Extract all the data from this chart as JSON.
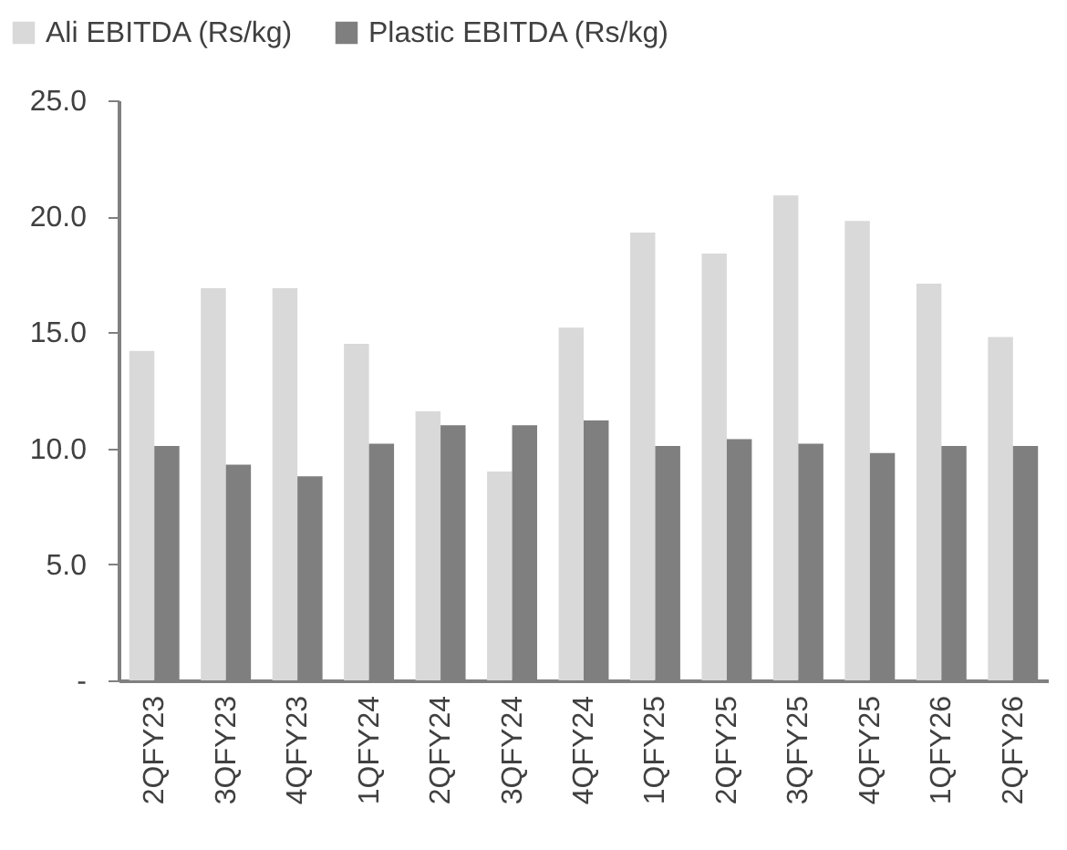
{
  "chart_data": {
    "type": "bar",
    "categories": [
      "2QFY23",
      "3QFY23",
      "4QFY23",
      "1QFY24",
      "2QFY24",
      "3QFY24",
      "4QFY24",
      "1QFY25",
      "2QFY25",
      "3QFY25",
      "4QFY25",
      "1QFY26",
      "2QFY26"
    ],
    "series": [
      {
        "name": "Ali EBITDA (Rs/kg)",
        "color": "#d9d9d9",
        "values": [
          14.2,
          16.9,
          16.9,
          14.5,
          11.6,
          9.0,
          15.2,
          19.3,
          18.4,
          20.9,
          19.8,
          17.1,
          14.8
        ]
      },
      {
        "name": "Plastic EBITDA (Rs/kg)",
        "color": "#7f7f7f",
        "values": [
          10.1,
          9.3,
          8.8,
          10.2,
          11.0,
          11.0,
          11.2,
          10.1,
          10.4,
          10.2,
          9.8,
          10.1,
          10.1
        ]
      }
    ],
    "ylim": [
      0,
      25
    ],
    "yticks": [
      {
        "value": 0,
        "label": "-"
      },
      {
        "value": 5,
        "label": "5.0"
      },
      {
        "value": 10,
        "label": "10.0"
      },
      {
        "value": 15,
        "label": "15.0"
      },
      {
        "value": 20,
        "label": "20.0"
      },
      {
        "value": 25,
        "label": "25.0"
      }
    ],
    "grid": false,
    "legend": "top left"
  }
}
